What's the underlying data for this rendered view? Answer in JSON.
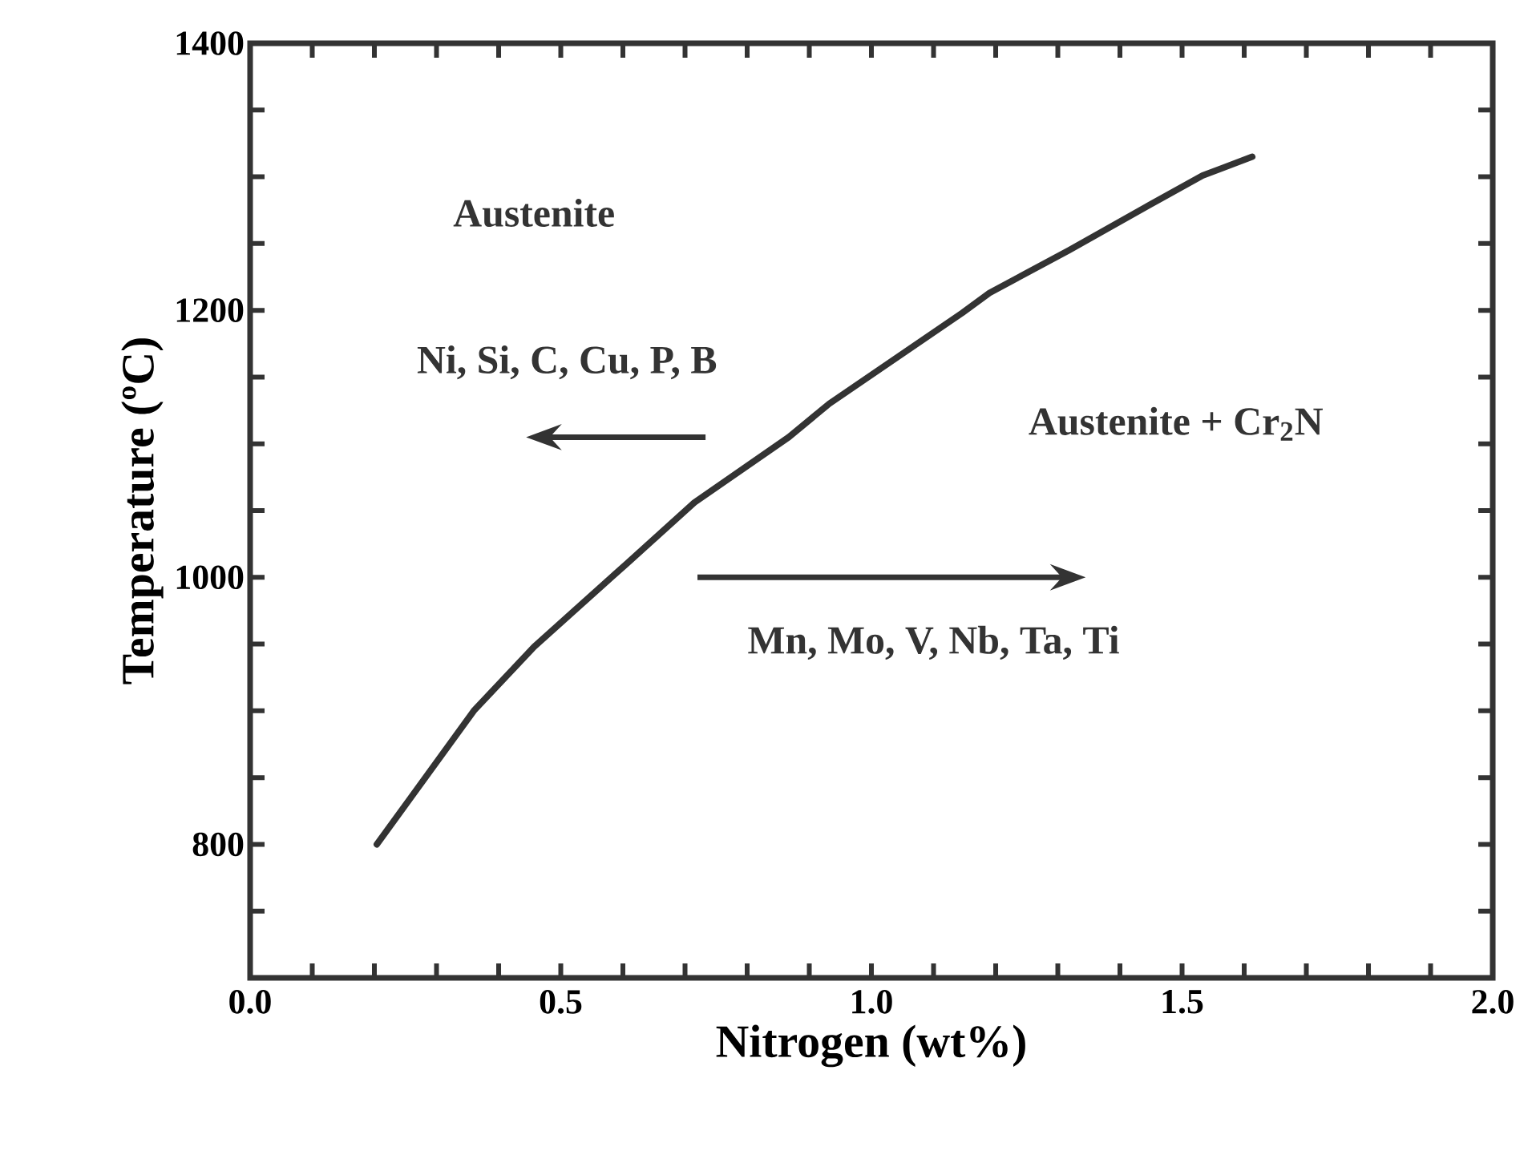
{
  "chart_data": {
    "type": "line",
    "xlabel": "Nitrogen (wt%)",
    "ylabel": "Temperature (ºC)",
    "xlim": [
      0,
      2
    ],
    "ylim": [
      700,
      1400
    ],
    "xticks": [
      {
        "value": 0,
        "label": "0.0"
      },
      {
        "value": 0.1,
        "label": null
      },
      {
        "value": 0.2,
        "label": null
      },
      {
        "value": 0.3,
        "label": null
      },
      {
        "value": 0.4,
        "label": null
      },
      0.5,
      {
        "value": 0.6,
        "label": null
      },
      {
        "value": 0.7,
        "label": null
      },
      {
        "value": 0.8,
        "label": null
      },
      {
        "value": 0.9,
        "label": null
      },
      {
        "value": 1,
        "label": "1.0"
      },
      {
        "value": 1.1,
        "label": null
      },
      {
        "value": 1.2,
        "label": null
      },
      {
        "value": 1.3,
        "label": null
      },
      {
        "value": 1.4,
        "label": null
      },
      1.5,
      {
        "value": 1.6,
        "label": null
      },
      {
        "value": 1.7,
        "label": null
      },
      {
        "value": 1.8,
        "label": null
      },
      {
        "value": 1.9,
        "label": null
      },
      {
        "value": 2,
        "label": "2.0"
      }
    ],
    "yticks": [
      {
        "value": 750,
        "label": null
      },
      800,
      {
        "value": 850,
        "label": null
      },
      {
        "value": 900,
        "label": null
      },
      {
        "value": 950,
        "label": null
      },
      1000,
      {
        "value": 1050,
        "label": null
      },
      {
        "value": 1100,
        "label": null
      },
      {
        "value": 1150,
        "label": null
      },
      1200,
      {
        "value": 1250,
        "label": null
      },
      {
        "value": 1300,
        "label": null
      },
      {
        "value": 1350,
        "label": null
      },
      1400
    ],
    "annotations": [
      "Austenite",
      "Ni, Si, C, Cu, P, B",
      "Austenite + Cr$_{2}$N",
      "Mn, Mo, V, Nb, Ta, Ti"
    ],
    "grid": false,
    "marker": "none",
    "line_style": "solid",
    "series": [
      {
        "color": "#333333",
        "x": [
          0.204,
          0.36,
          0.457,
          0.608,
          0.715,
          0.867,
          0.932,
          1.146,
          1.19,
          1.318,
          1.448,
          1.533,
          1.613
        ],
        "values": [
          800,
          900,
          948,
          1011,
          1056,
          1105,
          1130,
          1198,
          1213,
          1245,
          1279,
          1301,
          1315
        ]
      }
    ]
  }
}
